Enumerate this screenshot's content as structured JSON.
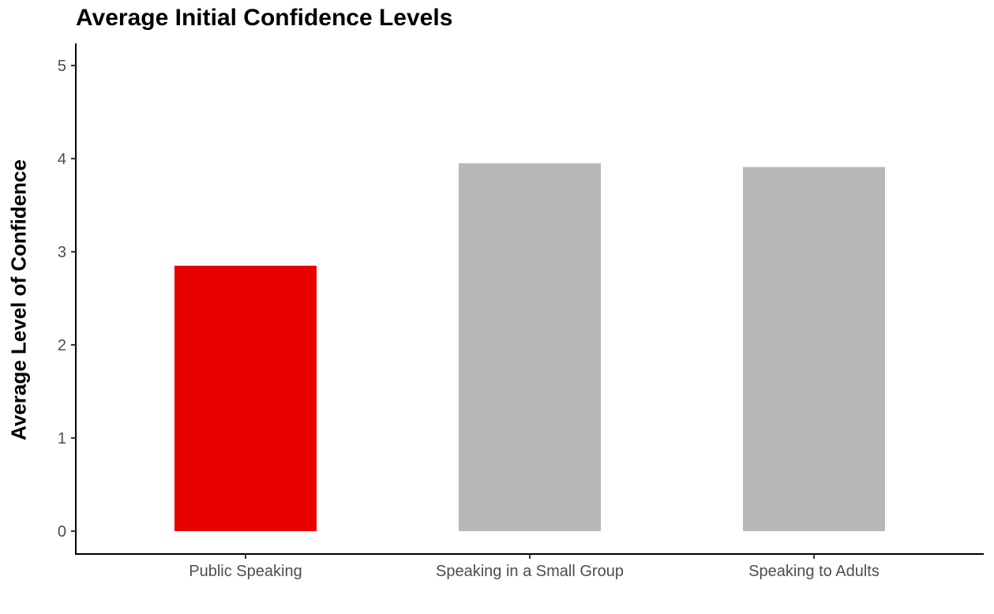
{
  "chart_data": {
    "type": "bar",
    "title": "Average Initial Confidence Levels",
    "xlabel": "",
    "ylabel": "Average Level of Confidence",
    "categories": [
      "Public Speaking",
      "Speaking in a Small Group",
      "Speaking to Adults"
    ],
    "values": [
      2.85,
      3.95,
      3.91
    ],
    "bar_colors": [
      "#e60000",
      "#b7b7b7",
      "#b7b7b7"
    ],
    "ylim": [
      0,
      5.2
    ],
    "yticks": [
      0,
      1,
      2,
      3,
      4,
      5
    ],
    "grid": false,
    "legend": "none"
  }
}
